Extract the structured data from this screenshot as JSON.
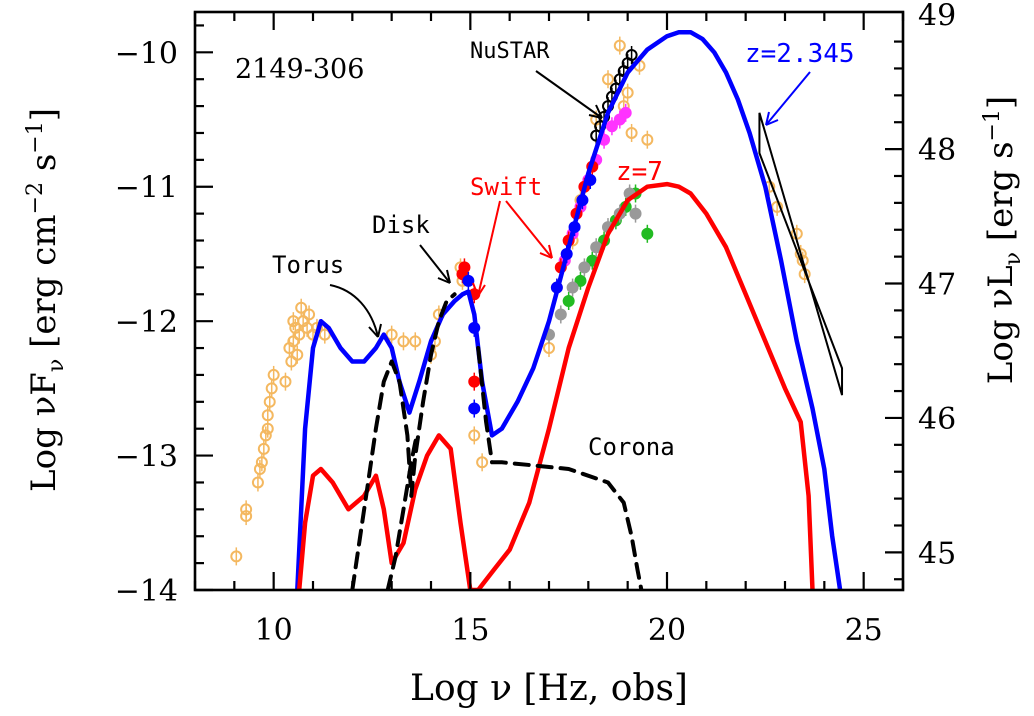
{
  "chart_data": {
    "type": "scatter",
    "title": "2149-306",
    "xlabel": "Log ν [Hz, obs]",
    "ylabel_left": "Log νF",
    "ylabel_left_sub": "ν",
    "ylabel_left_units_pre": " [erg cm",
    "ylabel_left_units_exp1": "−2",
    "ylabel_left_units_mid": " s",
    "ylabel_left_units_exp2": "−1",
    "ylabel_left_units_post": "]",
    "ylabel_right": "Log νL",
    "ylabel_right_sub": "ν",
    "ylabel_right_units_pre": " [erg s",
    "ylabel_right_units_exp": "−1",
    "ylabel_right_units_post": "]",
    "xlim": [
      8,
      26
    ],
    "ylim": [
      -14,
      -9.7
    ],
    "y2lim": [
      44.72,
      49.02
    ],
    "xticks": [
      10,
      15,
      20,
      25
    ],
    "yticks": [
      -14,
      -13,
      -12,
      -11,
      -10
    ],
    "y2ticks": [
      45,
      46,
      47,
      48,
      49
    ],
    "annotations": {
      "nustar": "NuSTAR",
      "swift": "Swift",
      "disk": "Disk",
      "torus": "Torus",
      "corona": "Corona",
      "z_obs": "z=2.345",
      "z_7": "z=7"
    },
    "colors": {
      "model_obs": "#0000ff",
      "model_z7": "#ff0000",
      "components": "#000000",
      "archival": "#f4b860",
      "nustar": "#000000",
      "xrt_magenta": "#ff33ff",
      "xrt_green": "#22bb22",
      "xrt_grey": "#999999",
      "xrt_red": "#ff0000",
      "xrt_blue": "#0000ff"
    },
    "series": [
      {
        "name": "z=2.345",
        "style": "model_obs",
        "x": [
          10.6,
          10.8,
          11.0,
          11.2,
          11.4,
          11.7,
          12.0,
          12.3,
          12.6,
          12.8,
          13.0,
          13.2,
          13.45,
          13.7,
          14.0,
          14.3,
          14.6,
          14.8,
          14.95,
          15.1,
          15.3,
          15.55,
          15.8,
          16.2,
          16.6,
          17.0,
          17.5,
          18.0,
          18.5,
          19.0,
          19.5,
          20.0,
          20.3,
          20.6,
          20.9,
          21.2,
          21.5,
          21.8,
          22.1,
          22.5,
          22.9,
          23.3,
          23.7,
          24.0,
          24.2,
          24.4
        ],
        "y": [
          -14.0,
          -12.8,
          -12.2,
          -12.0,
          -12.05,
          -12.2,
          -12.3,
          -12.3,
          -12.2,
          -12.1,
          -12.2,
          -12.45,
          -12.68,
          -12.45,
          -12.15,
          -11.95,
          -11.85,
          -11.8,
          -11.78,
          -11.95,
          -12.45,
          -12.85,
          -12.8,
          -12.6,
          -12.35,
          -12.0,
          -11.45,
          -10.9,
          -10.45,
          -10.15,
          -9.98,
          -9.88,
          -9.85,
          -9.85,
          -9.9,
          -10.0,
          -10.15,
          -10.35,
          -10.6,
          -11.0,
          -11.55,
          -12.15,
          -12.65,
          -13.1,
          -13.6,
          -14.0
        ]
      },
      {
        "name": "z=7",
        "style": "model_z7",
        "x": [
          10.65,
          10.8,
          11.0,
          11.2,
          11.5,
          11.9,
          12.3,
          12.6,
          12.8,
          13.0,
          13.3,
          13.6,
          13.9,
          14.2,
          14.5,
          14.75,
          15.0,
          15.2,
          15.6,
          16.0,
          16.5,
          17.0,
          17.5,
          18.0,
          18.5,
          19.0,
          19.5,
          20.0,
          20.3,
          20.6,
          21.0,
          21.5,
          22.0,
          22.5,
          23.0,
          23.4,
          23.6,
          23.7
        ],
        "y": [
          -14.0,
          -13.5,
          -13.15,
          -13.1,
          -13.2,
          -13.4,
          -13.3,
          -13.15,
          -13.4,
          -13.8,
          -13.65,
          -13.25,
          -13.0,
          -12.85,
          -12.95,
          -13.5,
          -14.0,
          -14.0,
          -13.85,
          -13.7,
          -13.35,
          -12.8,
          -12.2,
          -11.75,
          -11.35,
          -11.1,
          -11.0,
          -10.98,
          -11.0,
          -11.05,
          -11.2,
          -11.45,
          -11.8,
          -12.15,
          -12.5,
          -12.75,
          -13.3,
          -14.0
        ]
      },
      {
        "name": "Torus",
        "style": "components",
        "dashed": true,
        "x": [
          12.0,
          12.2,
          12.4,
          12.6,
          12.8,
          13.0,
          13.2,
          13.4,
          13.5,
          13.6,
          13.8,
          14.0,
          14.2,
          14.4,
          14.6
        ],
        "y": [
          -14.0,
          -13.6,
          -13.2,
          -12.8,
          -12.45,
          -12.3,
          -12.45,
          -12.85,
          -13.3,
          -13.0,
          -12.6,
          -12.25,
          -12.0,
          -11.85,
          -11.8
        ]
      },
      {
        "name": "Disk",
        "style": "components",
        "dashed": true,
        "x": [
          12.9,
          13.1,
          13.3,
          13.5,
          13.6,
          13.65
        ],
        "y": [
          -14.0,
          -13.75,
          -13.4,
          -13.05,
          -12.9,
          -12.85
        ]
      },
      {
        "name": "Corona",
        "style": "components",
        "dashed": true,
        "x": [
          15.2,
          15.4,
          15.55,
          15.8,
          16.5,
          17.5,
          18.5,
          18.9,
          19.1,
          19.25,
          19.35
        ],
        "y": [
          -12.2,
          -12.75,
          -13.05,
          -13.05,
          -13.07,
          -13.1,
          -13.2,
          -13.35,
          -13.6,
          -13.85,
          -14.0
        ]
      },
      {
        "name": "archival",
        "style": "archival",
        "kind": "points",
        "x": [
          9.05,
          9.3,
          9.3,
          9.6,
          9.65,
          9.7,
          9.75,
          9.8,
          9.85,
          9.85,
          9.9,
          9.95,
          10.0,
          10.3,
          10.4,
          10.45,
          10.5,
          10.5,
          10.55,
          10.6,
          10.65,
          10.7,
          10.75,
          10.85,
          10.9,
          11.0,
          11.1,
          11.3,
          13.0,
          13.3,
          13.6,
          14.0,
          14.1,
          14.2,
          14.75,
          14.8,
          15.1,
          15.3,
          17.0,
          17.2,
          17.4,
          17.6,
          17.8,
          18.2,
          18.5,
          18.8,
          18.9,
          19.0,
          19.1,
          19.3,
          19.5,
          22.6,
          22.8,
          23.3,
          23.4,
          23.45,
          23.5
        ],
        "y": [
          -13.75,
          -13.45,
          -13.4,
          -13.2,
          -13.1,
          -13.05,
          -12.95,
          -12.85,
          -12.8,
          -12.7,
          -12.6,
          -12.5,
          -12.4,
          -12.45,
          -12.2,
          -12.3,
          -12.15,
          -12.0,
          -12.05,
          -12.25,
          -12.1,
          -11.9,
          -12.0,
          -12.05,
          -11.95,
          -12.1,
          -12.05,
          -12.1,
          -12.1,
          -12.15,
          -12.15,
          -12.25,
          -12.15,
          -11.95,
          -11.6,
          -11.7,
          -12.85,
          -13.05,
          -12.2,
          -11.75,
          -11.55,
          -11.4,
          -11.1,
          -10.5,
          -10.2,
          -9.95,
          -10.4,
          -10.3,
          -10.6,
          -10.1,
          -10.65,
          -11.0,
          -11.15,
          -11.35,
          -11.5,
          -11.55,
          -11.65
        ]
      },
      {
        "name": "NuSTAR",
        "style": "nustar",
        "kind": "points",
        "x": [
          18.2,
          18.3,
          18.4,
          18.5,
          18.6,
          18.7,
          18.8,
          18.9,
          19.0,
          19.1
        ],
        "y": [
          -10.62,
          -10.55,
          -10.48,
          -10.4,
          -10.33,
          -10.27,
          -10.2,
          -10.14,
          -10.08,
          -10.02
        ]
      },
      {
        "name": "XRT-magenta",
        "style": "xrt_magenta",
        "kind": "points",
        "x": [
          17.4,
          17.6,
          17.8,
          18.0,
          18.2,
          18.4,
          18.6,
          18.8,
          18.95
        ],
        "y": [
          -11.55,
          -11.35,
          -11.15,
          -10.95,
          -10.8,
          -10.65,
          -10.55,
          -10.5,
          -10.45
        ]
      },
      {
        "name": "XRT-red",
        "style": "xrt_red",
        "kind": "points",
        "x": [
          14.8,
          14.85,
          15.1,
          15.1,
          17.3,
          17.5,
          17.7,
          17.9,
          18.1
        ],
        "y": [
          -11.65,
          -11.6,
          -11.8,
          -12.45,
          -11.6,
          -11.4,
          -11.2,
          -11.0,
          -10.85
        ]
      },
      {
        "name": "XRT-blue",
        "style": "xrt_blue",
        "kind": "points",
        "x": [
          14.95,
          15.1,
          15.1,
          17.2,
          17.45,
          17.65,
          17.85,
          18.05
        ],
        "y": [
          -11.7,
          -12.05,
          -12.65,
          -11.75,
          -11.5,
          -11.3,
          -11.1,
          -10.95
        ]
      },
      {
        "name": "XRT-green",
        "style": "xrt_green",
        "kind": "points",
        "x": [
          17.5,
          17.8,
          18.1,
          18.4,
          18.7,
          18.95,
          19.2,
          19.5
        ],
        "y": [
          -11.85,
          -11.7,
          -11.55,
          -11.4,
          -11.25,
          -11.15,
          -11.05,
          -11.35
        ]
      },
      {
        "name": "XRT-grey",
        "style": "xrt_grey",
        "kind": "points",
        "x": [
          17.0,
          17.3,
          17.6,
          17.9,
          18.2,
          18.5,
          18.8,
          19.05,
          19.2
        ],
        "y": [
          -12.1,
          -11.95,
          -11.75,
          -11.6,
          -11.45,
          -11.3,
          -11.2,
          -11.05,
          -11.2
        ]
      },
      {
        "name": "Fermi-bowtie",
        "style": "components",
        "kind": "bowtie",
        "x": [
          22.35,
          24.45
        ],
        "y_upper": [
          -10.45,
          -12.55
        ],
        "y_lower": [
          -10.75,
          -12.35
        ]
      }
    ]
  }
}
